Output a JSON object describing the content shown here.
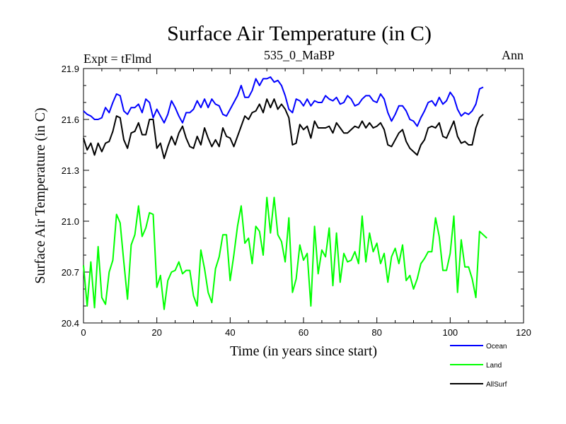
{
  "chart_data": {
    "type": "line",
    "title": "Surface Air Temperature (in C)",
    "subtitle": "535_0_MaBP",
    "left_label": "Expt = tFlmd",
    "right_label": "Ann",
    "xlabel": "Time (in years since start)",
    "ylabel": "Surface Air Temperature (in C)",
    "xlim": [
      0,
      120
    ],
    "ylim": [
      20.4,
      21.9
    ],
    "xticks": [
      0,
      20,
      40,
      60,
      80,
      100,
      120
    ],
    "yticks": [
      "20.4",
      "20.7",
      "21.0",
      "21.3",
      "21.6",
      "21.9"
    ],
    "legend_position": "bottom-right",
    "x_start": 0,
    "x_step": 1,
    "series": [
      {
        "name": "Ocean",
        "color": "#0000ff",
        "values": [
          21.65,
          21.63,
          21.62,
          21.6,
          21.6,
          21.61,
          21.67,
          21.64,
          21.7,
          21.75,
          21.74,
          21.65,
          21.63,
          21.67,
          21.67,
          21.69,
          21.64,
          21.72,
          21.7,
          21.61,
          21.66,
          21.62,
          21.58,
          21.63,
          21.71,
          21.67,
          21.62,
          21.58,
          21.64,
          21.64,
          21.66,
          21.71,
          21.67,
          21.72,
          21.67,
          21.72,
          21.69,
          21.68,
          21.63,
          21.62,
          21.66,
          21.7,
          21.74,
          21.8,
          21.73,
          21.73,
          21.77,
          21.84,
          21.8,
          21.84,
          21.84,
          21.85,
          21.82,
          21.83,
          21.8,
          21.74,
          21.66,
          21.64,
          21.72,
          21.71,
          21.68,
          21.72,
          21.68,
          21.71,
          21.7,
          21.7,
          21.74,
          21.72,
          21.71,
          21.73,
          21.69,
          21.7,
          21.74,
          21.72,
          21.68,
          21.69,
          21.72,
          21.74,
          21.74,
          21.71,
          21.7,
          21.75,
          21.72,
          21.64,
          21.59,
          21.63,
          21.68,
          21.68,
          21.65,
          21.6,
          21.59,
          21.56,
          21.61,
          21.65,
          21.7,
          21.71,
          21.68,
          21.73,
          21.69,
          21.71,
          21.76,
          21.73,
          21.66,
          21.62,
          21.64,
          21.63,
          21.65,
          21.69,
          21.78,
          21.79
        ]
      },
      {
        "name": "Land",
        "color": "#00ff00",
        "values": [
          20.74,
          20.5,
          20.76,
          20.49,
          20.85,
          20.55,
          20.51,
          20.7,
          20.77,
          21.04,
          20.99,
          20.76,
          20.54,
          20.86,
          20.92,
          21.09,
          20.91,
          20.96,
          21.05,
          21.04,
          20.61,
          20.68,
          20.48,
          20.65,
          20.7,
          20.71,
          20.76,
          20.69,
          20.71,
          20.71,
          20.56,
          20.5,
          20.83,
          20.72,
          20.58,
          20.52,
          20.72,
          20.79,
          20.92,
          20.92,
          20.65,
          20.8,
          20.97,
          21.09,
          20.87,
          20.9,
          20.75,
          20.97,
          20.94,
          20.8,
          21.14,
          20.93,
          21.14,
          20.92,
          20.88,
          20.76,
          21.02,
          20.58,
          20.66,
          20.86,
          20.77,
          20.81,
          20.5,
          20.97,
          20.69,
          20.83,
          20.79,
          20.96,
          20.62,
          20.93,
          20.64,
          20.81,
          20.76,
          20.77,
          20.82,
          20.75,
          21.03,
          20.76,
          20.93,
          20.82,
          20.87,
          20.75,
          20.81,
          20.64,
          20.79,
          20.84,
          20.75,
          20.86,
          20.65,
          20.68,
          20.6,
          20.66,
          20.75,
          20.78,
          20.82,
          20.82,
          21.02,
          20.91,
          20.71,
          20.71,
          20.81,
          21.03,
          20.58,
          20.89,
          20.73,
          20.73,
          20.66,
          20.55,
          20.94,
          20.92,
          20.9
        ]
      },
      {
        "name": "AllSurf",
        "color": "#000000",
        "values": [
          21.49,
          21.42,
          21.46,
          21.39,
          21.46,
          21.41,
          21.46,
          21.47,
          21.53,
          21.62,
          21.61,
          21.48,
          21.43,
          21.52,
          21.53,
          21.58,
          21.51,
          21.51,
          21.6,
          21.6,
          21.43,
          21.46,
          21.37,
          21.44,
          21.5,
          21.45,
          21.52,
          21.56,
          21.49,
          21.44,
          21.43,
          21.5,
          21.45,
          21.55,
          21.49,
          21.44,
          21.48,
          21.44,
          21.55,
          21.5,
          21.49,
          21.44,
          21.5,
          21.56,
          21.62,
          21.6,
          21.64,
          21.65,
          21.69,
          21.64,
          21.72,
          21.67,
          21.72,
          21.66,
          21.69,
          21.66,
          21.61,
          21.45,
          21.46,
          21.57,
          21.54,
          21.56,
          21.49,
          21.59,
          21.55,
          21.55,
          21.55,
          21.56,
          21.52,
          21.58,
          21.55,
          21.52,
          21.52,
          21.54,
          21.56,
          21.55,
          21.59,
          21.55,
          21.58,
          21.55,
          21.56,
          21.58,
          21.54,
          21.45,
          21.44,
          21.48,
          21.52,
          21.54,
          21.47,
          21.43,
          21.41,
          21.39,
          21.45,
          21.48,
          21.55,
          21.56,
          21.55,
          21.58,
          21.5,
          21.49,
          21.54,
          21.59,
          21.5,
          21.46,
          21.47,
          21.45,
          21.45,
          21.55,
          21.61,
          21.63
        ]
      }
    ]
  }
}
